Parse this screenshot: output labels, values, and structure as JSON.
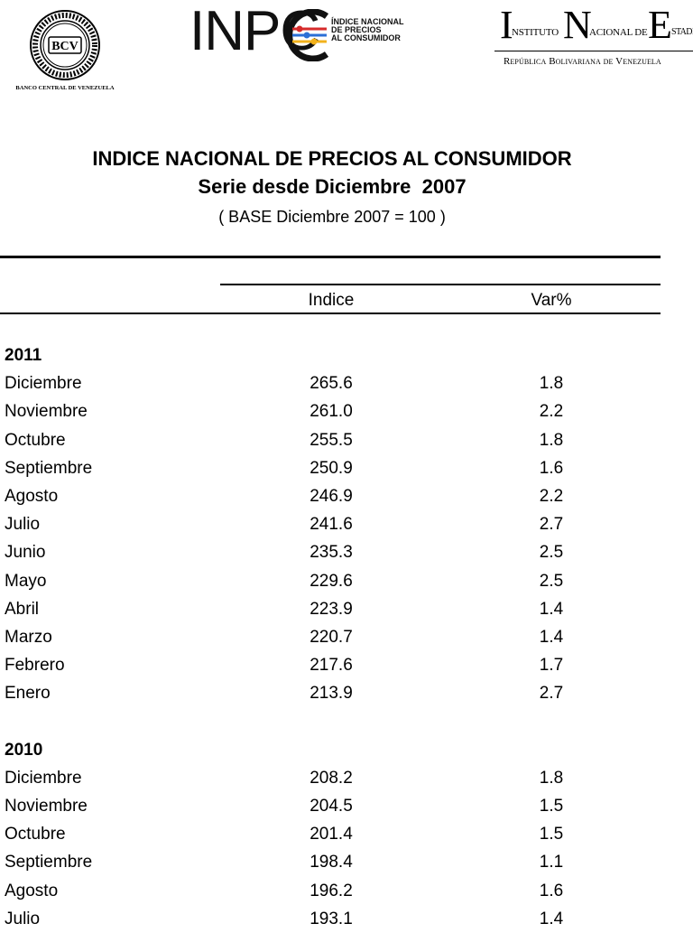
{
  "logos": {
    "bcv": {
      "seal_text": "BCV",
      "caption": "BANCO CENTRAL DE VENEZUELA"
    },
    "inpc": {
      "word": "INPC",
      "sub": [
        "ÍNDICE NACIONAL",
        "DE PRECIOS",
        "AL CONSUMIDOR"
      ]
    },
    "ine": {
      "letters": [
        "I",
        "N",
        "E"
      ],
      "parts": [
        "NSTITUTO",
        "ACIONAL DE",
        "STADÍSTICA"
      ],
      "sub": "República Bolivariana de Venezuela"
    }
  },
  "header": {
    "title": "INDICE NACIONAL DE PRECIOS AL CONSUMIDOR",
    "subtitle": "Serie desde Diciembre  2007",
    "base": "( BASE Diciembre 2007 = 100 )"
  },
  "table": {
    "col_indice": "Indice",
    "col_var": "Var%",
    "groups": [
      {
        "year": "2011",
        "rows": [
          {
            "month": "Diciembre",
            "indice": "265.6",
            "var": "1.8"
          },
          {
            "month": "Noviembre",
            "indice": "261.0",
            "var": "2.2"
          },
          {
            "month": "Octubre",
            "indice": "255.5",
            "var": "1.8"
          },
          {
            "month": "Septiembre",
            "indice": "250.9",
            "var": "1.6"
          },
          {
            "month": "Agosto",
            "indice": "246.9",
            "var": "2.2"
          },
          {
            "month": "Julio",
            "indice": "241.6",
            "var": "2.7"
          },
          {
            "month": "Junio",
            "indice": "235.3",
            "var": "2.5"
          },
          {
            "month": "Mayo",
            "indice": "229.6",
            "var": "2.5"
          },
          {
            "month": "Abril",
            "indice": "223.9",
            "var": "1.4"
          },
          {
            "month": "Marzo",
            "indice": "220.7",
            "var": "1.4"
          },
          {
            "month": "Febrero",
            "indice": "217.6",
            "var": "1.7"
          },
          {
            "month": "Enero",
            "indice": "213.9",
            "var": "2.7"
          }
        ]
      },
      {
        "year": "2010",
        "rows": [
          {
            "month": "Diciembre",
            "indice": "208.2",
            "var": "1.8"
          },
          {
            "month": "Noviembre",
            "indice": "204.5",
            "var": "1.5"
          },
          {
            "month": "Octubre",
            "indice": "201.4",
            "var": "1.5"
          },
          {
            "month": "Septiembre",
            "indice": "198.4",
            "var": "1.1"
          },
          {
            "month": "Agosto",
            "indice": "196.2",
            "var": "1.6"
          },
          {
            "month": "Julio",
            "indice": "193.1",
            "var": "1.4"
          }
        ]
      }
    ]
  }
}
